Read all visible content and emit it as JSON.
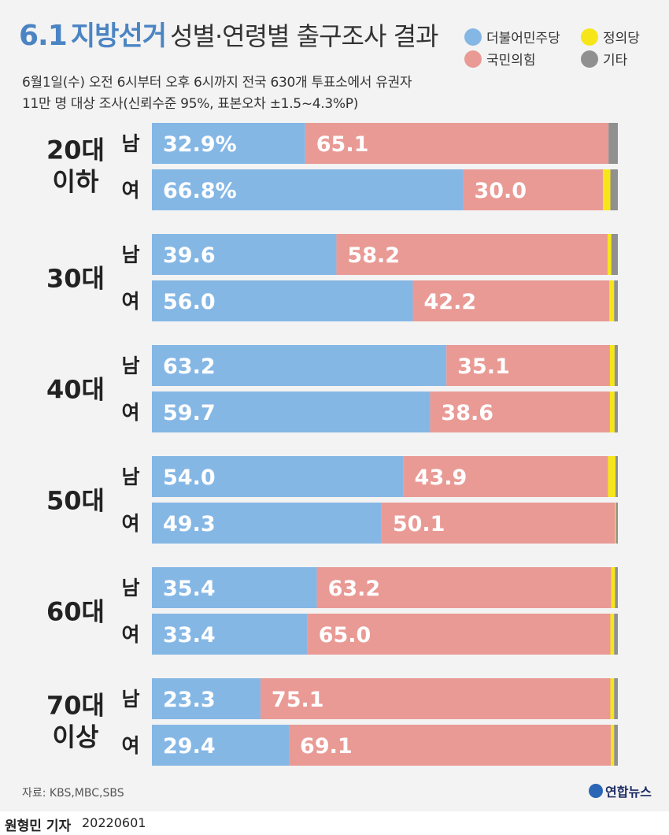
{
  "header": {
    "date": "6.1",
    "event": "지방선거",
    "title_rest": "성별·연령별 출구조사 결과",
    "subtitle_line1": "6월1일(수)  오전 6시부터 오후 6시까지 전국 630개 투표소에서 유권자",
    "subtitle_line2": "11만 명 대상 조사(신뢰수준 95%, 표본오차 ±1.5~4.3%P)"
  },
  "legend": {
    "democratic": "더불어민주당",
    "justice": "정의당",
    "ppp": "국민의힘",
    "other": "기타"
  },
  "colors": {
    "democratic": "#85b7e5",
    "ppp": "#e99a95",
    "justice": "#f6e619",
    "other": "#909090"
  },
  "chart_data": {
    "type": "bar",
    "orientation": "horizontal-stacked-100",
    "title": "6.1 지방선거 성별·연령별 출구조사 결과",
    "series_names": [
      "더불어민주당",
      "국민의힘",
      "정의당",
      "기타"
    ],
    "groups": [
      {
        "age_line1": "20대",
        "age_line2": "이하",
        "rows": [
          {
            "gender": "남",
            "dem": 32.9,
            "dem_label": "32.9%",
            "ppp": 65.1,
            "ppp_label": "65.1",
            "justice": 0.0,
            "other": 2.0
          },
          {
            "gender": "여",
            "dem": 66.8,
            "dem_label": "66.8%",
            "ppp": 30.0,
            "ppp_label": "30.0",
            "justice": 1.6,
            "other": 1.6
          }
        ]
      },
      {
        "age_line1": "30대",
        "age_line2": "",
        "rows": [
          {
            "gender": "남",
            "dem": 39.6,
            "dem_label": "39.6",
            "ppp": 58.2,
            "ppp_label": "58.2",
            "justice": 0.8,
            "other": 1.4
          },
          {
            "gender": "여",
            "dem": 56.0,
            "dem_label": "56.0",
            "ppp": 42.2,
            "ppp_label": "42.2",
            "justice": 1.0,
            "other": 0.8
          }
        ]
      },
      {
        "age_line1": "40대",
        "age_line2": "",
        "rows": [
          {
            "gender": "남",
            "dem": 63.2,
            "dem_label": "63.2",
            "ppp": 35.1,
            "ppp_label": "35.1",
            "justice": 1.0,
            "other": 0.7
          },
          {
            "gender": "여",
            "dem": 59.7,
            "dem_label": "59.7",
            "ppp": 38.6,
            "ppp_label": "38.6",
            "justice": 1.0,
            "other": 0.7
          }
        ]
      },
      {
        "age_line1": "50대",
        "age_line2": "",
        "rows": [
          {
            "gender": "남",
            "dem": 54.0,
            "dem_label": "54.0",
            "ppp": 43.9,
            "ppp_label": "43.9",
            "justice": 1.6,
            "other": 0.5
          },
          {
            "gender": "여",
            "dem": 49.3,
            "dem_label": "49.3",
            "ppp": 50.1,
            "ppp_label": "50.1",
            "justice": 0.2,
            "other": 0.4
          }
        ]
      },
      {
        "age_line1": "60대",
        "age_line2": "",
        "rows": [
          {
            "gender": "남",
            "dem": 35.4,
            "dem_label": "35.4",
            "ppp": 63.2,
            "ppp_label": "63.2",
            "justice": 0.8,
            "other": 0.6
          },
          {
            "gender": "여",
            "dem": 33.4,
            "dem_label": "33.4",
            "ppp": 65.0,
            "ppp_label": "65.0",
            "justice": 0.8,
            "other": 0.8
          }
        ]
      },
      {
        "age_line1": "70대",
        "age_line2": "이상",
        "rows": [
          {
            "gender": "남",
            "dem": 23.3,
            "dem_label": "23.3",
            "ppp": 75.1,
            "ppp_label": "75.1",
            "justice": 0.8,
            "other": 0.8
          },
          {
            "gender": "여",
            "dem": 29.4,
            "dem_label": "29.4",
            "ppp": 69.1,
            "ppp_label": "69.1",
            "justice": 0.7,
            "other": 0.8
          }
        ]
      }
    ]
  },
  "footer": {
    "source": "자료: KBS,MBC,SBS",
    "logo": "연합뉴스",
    "reporter": "원형민 기자",
    "date": "20220601"
  }
}
